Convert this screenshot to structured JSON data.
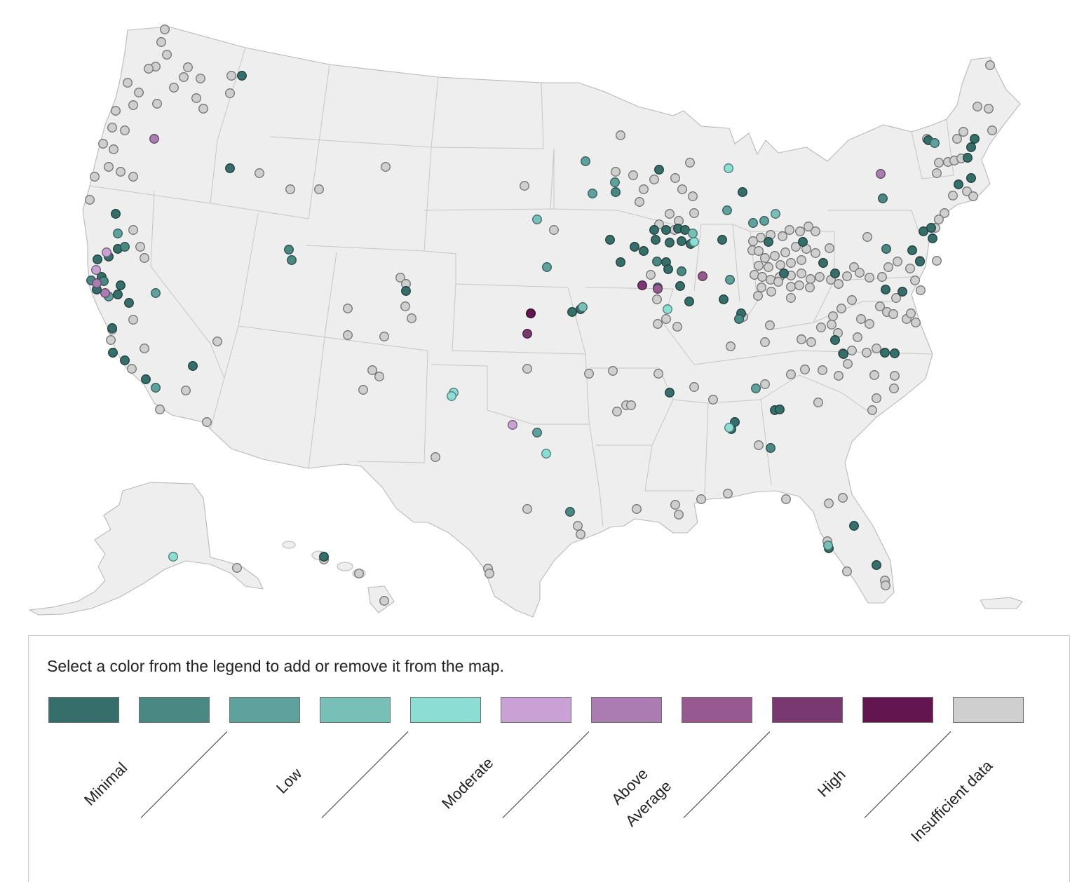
{
  "legend": {
    "instruction": "Select a color from the legend to add or remove it from the map.",
    "categories": [
      {
        "key": "minimal-1",
        "color": "#356e6a"
      },
      {
        "key": "minimal-2",
        "color": "#4a8883"
      },
      {
        "key": "low-1",
        "color": "#5fa29d"
      },
      {
        "key": "low-2",
        "color": "#78bfb7"
      },
      {
        "key": "moderate-1",
        "color": "#8cddd3"
      },
      {
        "key": "moderate-2",
        "color": "#c9a1d5"
      },
      {
        "key": "above-average-1",
        "color": "#ab7cb2"
      },
      {
        "key": "above-average-2",
        "color": "#965a91"
      },
      {
        "key": "high-1",
        "color": "#7a3870"
      },
      {
        "key": "high-2",
        "color": "#63154f"
      },
      {
        "key": "insufficient",
        "color": "#cfcfcf"
      }
    ],
    "labels": {
      "minimal": "Minimal",
      "low": "Low",
      "moderate": "Moderate",
      "above_line1": "Above",
      "above_line2": "Average",
      "high": "High",
      "insufficient": "Insufficient data"
    }
  }
}
